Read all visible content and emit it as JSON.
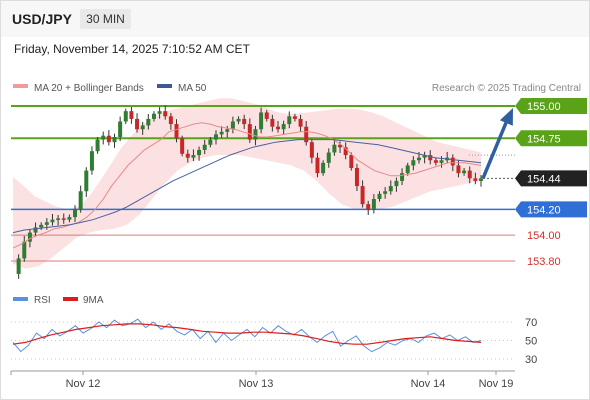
{
  "header": {
    "symbol": "USD/JPY",
    "timeframe": "30 MIN",
    "timestamp": "Friday, November 14, 2025 7:10:52 AM CET"
  },
  "legend": {
    "bollinger": "MA 20 + Bollinger Bands",
    "ma50": "MA 50",
    "credit": "Research © 2025 Trading Central",
    "rsi": "RSI",
    "rsi_ma": "9MA"
  },
  "colors": {
    "candle_up": "#2e7d32",
    "candle_down": "#c62828",
    "band_fill": "#fadcdc",
    "ma20": "#e88a8a",
    "ma50": "#4a5fa0",
    "resistance": "#5aa318",
    "support": "#2f6fd6",
    "minor_support": "#e07a7a",
    "arrow": "#2f5f9e",
    "rsi": "#5b8fe0",
    "rsi_ma": "#dd1c1c"
  },
  "chart_data": {
    "type": "candlestick",
    "x_labels": [
      "Nov 12",
      "Nov 13",
      "Nov 14",
      "Nov 19"
    ],
    "y_range": [
      153.6,
      155.1
    ],
    "current_price": 154.44,
    "levels": [
      {
        "value": 155.0,
        "label": "155.00",
        "kind": "resistance"
      },
      {
        "value": 154.75,
        "label": "154.75",
        "kind": "resistance"
      },
      {
        "value": 154.44,
        "label": "154.44",
        "kind": "current"
      },
      {
        "value": 154.2,
        "label": "154.20",
        "kind": "support"
      },
      {
        "value": 154.0,
        "label": "154.00",
        "kind": "minor"
      },
      {
        "value": 153.8,
        "label": "153.80",
        "kind": "minor"
      }
    ],
    "forecast_arrow": {
      "from": 154.44,
      "to": 155.0
    },
    "price_path": [
      153.7,
      153.82,
      153.95,
      154.02,
      154.06,
      154.08,
      154.1,
      154.12,
      154.13,
      154.12,
      154.14,
      154.2,
      154.34,
      154.5,
      154.65,
      154.74,
      154.77,
      154.72,
      154.76,
      154.88,
      154.96,
      154.9,
      154.82,
      154.85,
      154.9,
      154.94,
      154.96,
      154.92,
      154.86,
      154.75,
      154.63,
      154.6,
      154.62,
      154.66,
      154.7,
      154.74,
      154.78,
      154.8,
      154.82,
      154.88,
      154.9,
      154.86,
      154.74,
      154.82,
      154.95,
      154.9,
      154.84,
      154.82,
      154.86,
      154.92,
      154.9,
      154.84,
      154.72,
      154.6,
      154.48,
      154.56,
      154.64,
      154.7,
      154.68,
      154.62,
      154.52,
      154.38,
      154.24,
      154.2,
      154.28,
      154.32,
      154.34,
      154.38,
      154.42,
      154.48,
      154.54,
      154.58,
      154.6,
      154.62,
      154.58,
      154.56,
      154.58,
      154.6,
      154.54,
      154.48,
      154.5,
      154.44,
      154.42,
      154.44
    ],
    "ma20": [
      153.9,
      153.93,
      153.97,
      154.0,
      154.02,
      154.05,
      154.06,
      154.08,
      154.1,
      154.14,
      154.2,
      154.28,
      154.38,
      154.46,
      154.54,
      154.6,
      154.66,
      154.7,
      154.74,
      154.8,
      154.82,
      154.84,
      154.86,
      154.87,
      154.86,
      154.84,
      154.83,
      154.82,
      154.8,
      154.78,
      154.76,
      154.76,
      154.77,
      154.78,
      154.79,
      154.8,
      154.8,
      154.79,
      154.77,
      154.74,
      154.7,
      154.64,
      154.58,
      154.54,
      154.5,
      154.48,
      154.46,
      154.46,
      154.47,
      154.48,
      154.5,
      154.52,
      154.54,
      154.56,
      154.56,
      154.56,
      154.55,
      154.54
    ],
    "ma50": [
      154.02,
      154.04,
      154.05,
      154.06,
      154.07,
      154.08,
      154.1,
      154.12,
      154.15,
      154.18,
      154.22,
      154.27,
      154.32,
      154.37,
      154.42,
      154.46,
      154.5,
      154.54,
      154.58,
      154.62,
      154.65,
      154.68,
      154.7,
      154.72,
      154.73,
      154.74,
      154.74,
      154.74,
      154.74,
      154.73,
      154.72,
      154.71,
      154.7,
      154.68,
      154.66,
      154.64,
      154.62,
      154.6,
      154.59,
      154.58,
      154.57,
      154.56
    ],
    "bb_upper": [
      154.45,
      154.38,
      154.3,
      154.26,
      154.22,
      154.2,
      154.22,
      154.3,
      154.42,
      154.55,
      154.68,
      154.78,
      154.86,
      154.92,
      154.96,
      154.98,
      155.0,
      155.02,
      155.04,
      155.06,
      155.06,
      155.04,
      155.02,
      155.0,
      154.96,
      154.94,
      154.94,
      154.95,
      154.96,
      154.97,
      154.98,
      154.98,
      154.97,
      154.95,
      154.92,
      154.88,
      154.84,
      154.8,
      154.76,
      154.72,
      154.7,
      154.68,
      154.66,
      154.64
    ],
    "bb_lower": [
      153.78,
      153.74,
      153.76,
      153.82,
      153.9,
      153.98,
      154.02,
      154.04,
      154.05,
      154.08,
      154.16,
      154.28,
      154.4,
      154.5,
      154.56,
      154.6,
      154.62,
      154.62,
      154.62,
      154.6,
      154.58,
      154.56,
      154.54,
      154.5,
      154.42,
      154.32,
      154.24,
      154.2,
      154.19,
      154.2,
      154.22,
      154.26,
      154.3,
      154.34,
      154.36,
      154.38,
      154.4,
      154.42
    ],
    "rsi": {
      "ticks": [
        "70",
        "50",
        "30"
      ],
      "range": [
        20,
        80
      ],
      "rsi": [
        48,
        38,
        45,
        58,
        52,
        62,
        55,
        60,
        66,
        58,
        63,
        70,
        64,
        72,
        66,
        68,
        73,
        64,
        70,
        62,
        68,
        60,
        56,
        62,
        52,
        60,
        48,
        58,
        50,
        56,
        62,
        54,
        64,
        58,
        66,
        60,
        56,
        62,
        54,
        48,
        55,
        60,
        44,
        50,
        55,
        44,
        38,
        42,
        48,
        45,
        50,
        52,
        48,
        55,
        58,
        52,
        56,
        50,
        54,
        48,
        50
      ],
      "ma9": [
        46,
        48,
        52,
        56,
        59,
        62,
        64,
        66,
        67,
        68,
        68,
        67,
        65,
        64,
        62,
        60,
        59,
        58,
        58,
        59,
        59,
        58,
        57,
        55,
        52,
        49,
        47,
        46,
        46,
        48,
        50,
        52,
        53,
        54,
        52,
        50,
        49,
        48
      ]
    }
  }
}
